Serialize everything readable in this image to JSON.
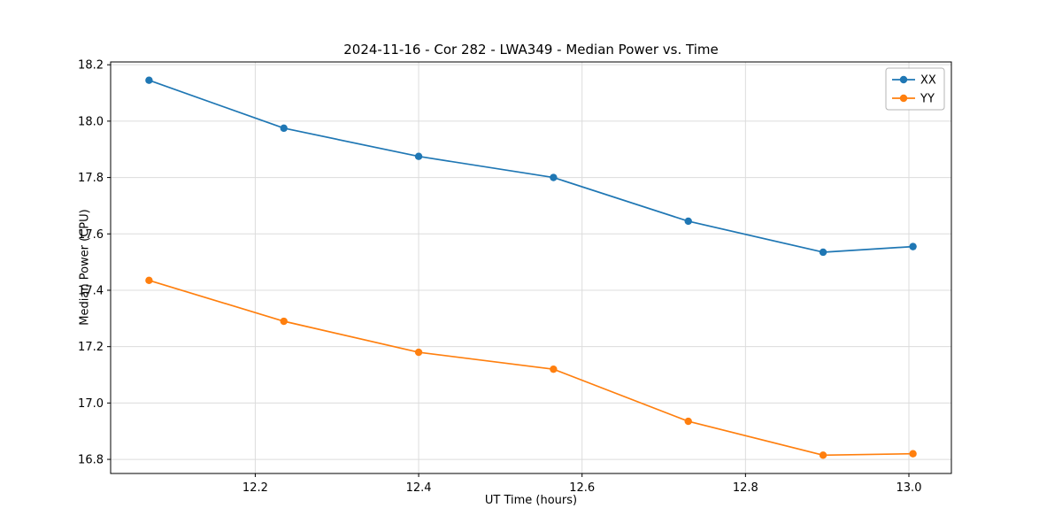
{
  "chart_data": {
    "type": "line",
    "title": "2024-11-16 - Cor 282 - LWA349 - Median Power vs. Time",
    "xlabel": "UT Time (hours)",
    "ylabel": "Median Power (CPU)",
    "x": [
      12.07,
      12.235,
      12.4,
      12.565,
      12.73,
      12.895,
      13.005
    ],
    "series": [
      {
        "name": "XX",
        "color": "#1f77b4",
        "values": [
          18.145,
          17.975,
          17.875,
          17.8,
          17.645,
          17.535,
          17.555
        ]
      },
      {
        "name": "YY",
        "color": "#ff7f0e",
        "values": [
          17.435,
          17.29,
          17.18,
          17.12,
          16.935,
          16.815,
          16.82
        ]
      }
    ],
    "xlim": [
      12.023,
      13.052
    ],
    "ylim": [
      16.75,
      18.21
    ],
    "xticks": [
      12.2,
      12.4,
      12.6,
      12.8,
      13.0
    ],
    "xtick_labels": [
      "12.2",
      "12.4",
      "12.6",
      "12.8",
      "13.0"
    ],
    "yticks": [
      16.8,
      17.0,
      17.2,
      17.4,
      17.6,
      17.8,
      18.0,
      18.2
    ],
    "ytick_labels": [
      "16.8",
      "17.0",
      "17.2",
      "17.4",
      "17.6",
      "17.8",
      "18.0",
      "18.2"
    ],
    "grid": true,
    "legend_position": "upper right",
    "style": {
      "grid_color": "#dcdcdc",
      "spine_color": "#000000",
      "background": "#ffffff",
      "legend_border": "#b5b5b5"
    }
  }
}
